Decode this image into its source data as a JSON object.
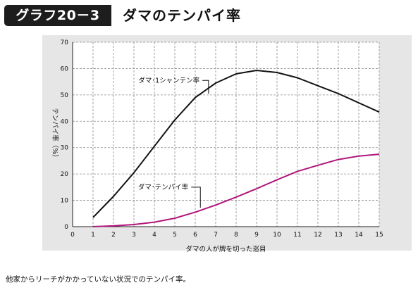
{
  "header": {
    "badge_label": "グラフ20－3",
    "title": "ダマのテンパイ率"
  },
  "footnote": "他家からリーチがかかっていない状況でのテンパイ率。",
  "colors": {
    "badge_bg": "#1d1d1d",
    "panel_bg": "#e6e6e6",
    "shanten_line": "#111111",
    "tenpai_line": "#b0177a"
  },
  "chart_data": {
    "type": "line",
    "title": "ダマのテンパイ率",
    "xlabel": "ダマの人が牌を切った巡目",
    "ylabel": "テンパイ率（%）",
    "xlim": [
      0,
      15
    ],
    "ylim": [
      0,
      70
    ],
    "xticks": [
      0,
      1,
      2,
      3,
      4,
      5,
      6,
      7,
      8,
      9,
      10,
      11,
      12,
      13,
      14,
      15
    ],
    "yticks": [
      0,
      10,
      20,
      30,
      40,
      50,
      60,
      70
    ],
    "grid": true,
    "x": [
      1,
      2,
      3,
      4,
      5,
      6,
      7,
      8,
      9,
      10,
      11,
      12,
      13,
      14,
      15
    ],
    "series": [
      {
        "name": "ダマ･1シャンテン率",
        "color": "#111111",
        "values": [
          3.5,
          11.5,
          20.5,
          30.5,
          40.5,
          49.0,
          54.5,
          58.0,
          59.3,
          58.5,
          56.5,
          53.5,
          50.5,
          47.0,
          43.5
        ]
      },
      {
        "name": "ダマ･テンパイ率",
        "color": "#b0177a",
        "values": [
          0.0,
          0.3,
          0.8,
          1.7,
          3.2,
          5.5,
          8.2,
          11.2,
          14.4,
          17.8,
          21.0,
          23.3,
          25.5,
          26.8,
          27.5
        ]
      }
    ]
  }
}
